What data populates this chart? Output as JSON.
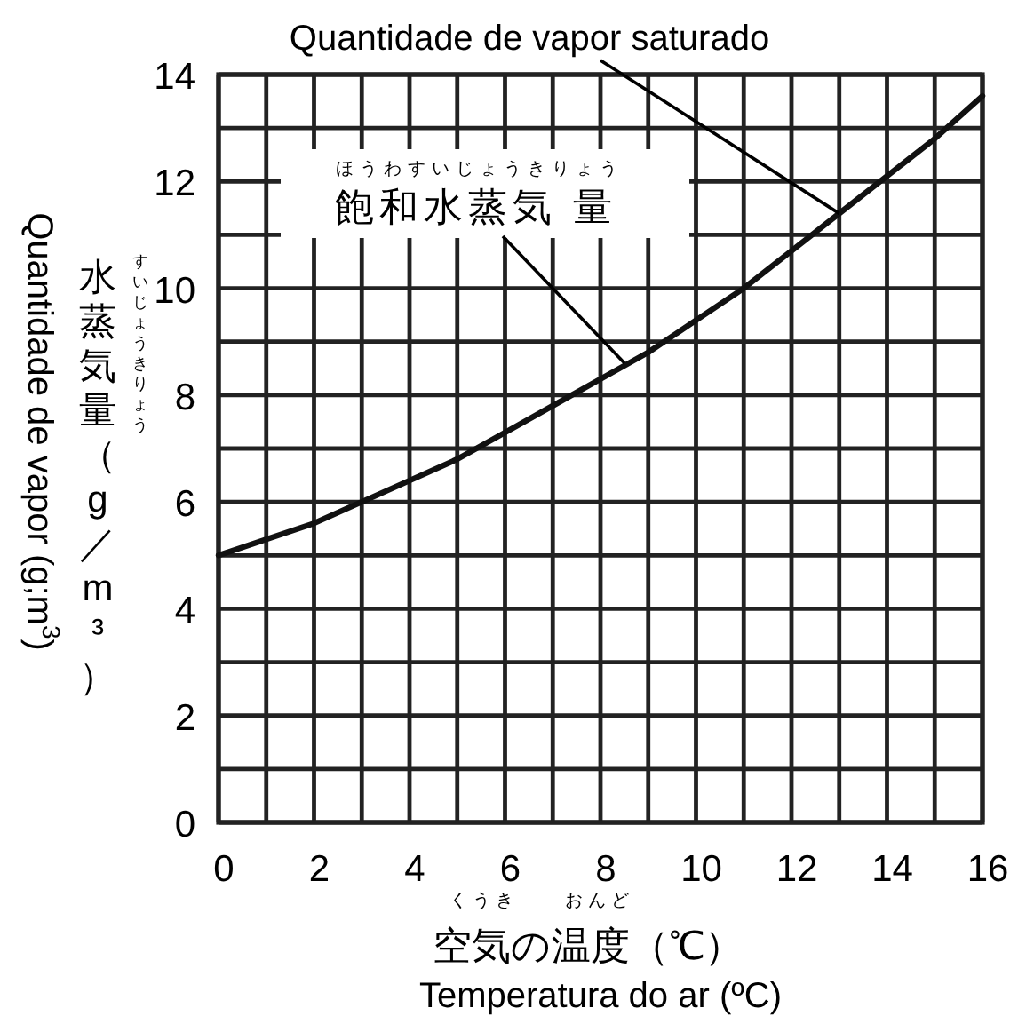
{
  "chart_data": {
    "type": "line",
    "x": [
      0,
      1,
      2,
      3,
      4,
      5,
      6,
      7,
      8,
      9,
      10,
      11,
      12,
      13,
      14,
      15,
      16
    ],
    "series": [
      {
        "color": "#111111",
        "values": [
          5.0,
          5.3,
          5.6,
          6.0,
          6.4,
          6.8,
          7.3,
          7.8,
          8.3,
          8.8,
          9.4,
          10.0,
          10.7,
          11.4,
          12.1,
          12.8,
          13.6
        ]
      }
    ],
    "xlabel": "Temperatura do ar (ºC)",
    "ylabel": "Quantidade de vapor (g;m$^{3}$)",
    "xlim": [
      0,
      16
    ],
    "ylim": [
      0,
      14
    ],
    "xticks": [
      0,
      {
        "value": 1,
        "label": null
      },
      2,
      {
        "value": 3,
        "label": null
      },
      4,
      {
        "value": 5,
        "label": null
      },
      6,
      {
        "value": 7,
        "label": null
      },
      8,
      {
        "value": 9,
        "label": null
      },
      10,
      {
        "value": 11,
        "label": null
      },
      12,
      {
        "value": 13,
        "label": null
      },
      14,
      {
        "value": 15,
        "label": null
      },
      16
    ],
    "yticks": [
      0,
      {
        "value": 1,
        "label": null
      },
      2,
      {
        "value": 3,
        "label": null
      },
      4,
      {
        "value": 5,
        "label": null
      },
      6,
      {
        "value": 7,
        "label": null
      },
      8,
      {
        "value": 9,
        "label": null
      },
      10,
      {
        "value": 11,
        "label": null
      },
      12,
      {
        "value": 13,
        "label": null
      },
      14
    ],
    "grid": true,
    "line_style": "solid",
    "annotations": [
      {
        "text": "Quantidade de vapor saturado",
        "x": 13,
        "y": 11.4
      },
      {
        "text": "飽和水蒸気 量",
        "x": 8.5,
        "y": 8.6
      },
      "ほうわすいじょうきりょう",
      "水蒸気量（g／m³）",
      "すいじょうきりょう",
      "空気の温度（℃）",
      "くうき　　おんど"
    ]
  }
}
